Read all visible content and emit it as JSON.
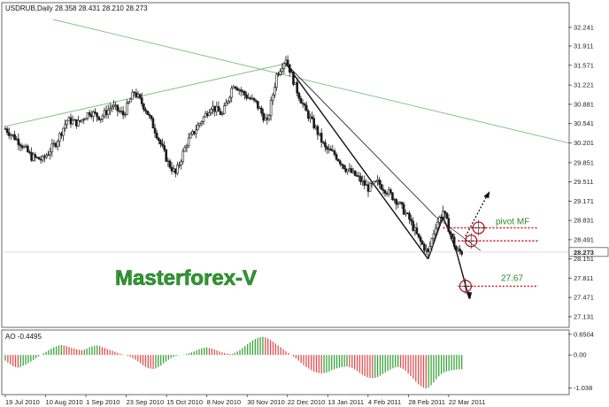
{
  "chart_data": {
    "type": "candlestick",
    "main": {
      "header": "USDRUB,Daily  28.358 28.431 28.210 28.273",
      "ylim": [
        27.13,
        32.38
      ],
      "y_ticks": [
        "32.241",
        "31.911",
        "31.571",
        "31.221",
        "30.881",
        "30.541",
        "30.201",
        "29.851",
        "29.511",
        "29.171",
        "28.831",
        "28.491",
        "28.151",
        "27.811",
        "27.471",
        "27.131"
      ],
      "last_price_label": "28.273",
      "last_price": 28.273,
      "price_path": [
        [
          0,
          30.45
        ],
        [
          8,
          30.2
        ],
        [
          14,
          29.95
        ],
        [
          20,
          29.9
        ],
        [
          27,
          30.2
        ],
        [
          33,
          30.6
        ],
        [
          39,
          30.55
        ],
        [
          45,
          30.75
        ],
        [
          51,
          30.65
        ],
        [
          57,
          30.85
        ],
        [
          63,
          30.7
        ],
        [
          69,
          31.1
        ],
        [
          75,
          30.8
        ],
        [
          81,
          30.35
        ],
        [
          87,
          29.85
        ],
        [
          91,
          29.65
        ],
        [
          97,
          30.2
        ],
        [
          103,
          30.5
        ],
        [
          110,
          30.85
        ],
        [
          116,
          30.7
        ],
        [
          122,
          31.25
        ],
        [
          128,
          31.05
        ],
        [
          134,
          30.9
        ],
        [
          140,
          30.55
        ],
        [
          145,
          31.4
        ],
        [
          150,
          31.7
        ],
        [
          155,
          31.2
        ],
        [
          160,
          30.8
        ],
        [
          166,
          30.45
        ],
        [
          171,
          30.1
        ],
        [
          176,
          30.0
        ],
        [
          182,
          29.75
        ],
        [
          188,
          29.6
        ],
        [
          194,
          29.4
        ],
        [
          199,
          29.5
        ],
        [
          204,
          29.35
        ],
        [
          210,
          29.15
        ],
        [
          216,
          28.85
        ],
        [
          221,
          28.5
        ],
        [
          226,
          28.25
        ],
        [
          230,
          28.75
        ],
        [
          234,
          29.0
        ],
        [
          238,
          28.6
        ],
        [
          241,
          28.3
        ],
        [
          244,
          28.27
        ]
      ]
    },
    "x_ticks": [
      "19 Jul 2010",
      "10 Aug 2010",
      "1 Sep 2010",
      "23 Sep 2010",
      "15 Oct 2010",
      "8 Nov 2010",
      "30 Nov 2010",
      "22 Dec 2010",
      "13 Jan 2011",
      "4 Feb 2011",
      "28 Feb 2011",
      "22 Mar 2011"
    ],
    "annotations": [
      {
        "label": "pivot MF",
        "value": 28.7
      },
      {
        "label": "27.67",
        "value": 27.67
      }
    ],
    "watermark": "Masterforex-V",
    "oscillator": {
      "header": "AO -0.4495",
      "ylim": [
        -1.19,
        0.7
      ],
      "y_ticks": [
        "0.6504",
        "0.00",
        "-1.038"
      ],
      "values": [
        -0.18,
        -0.24,
        -0.3,
        -0.35,
        -0.38,
        -0.4,
        -0.38,
        -0.34,
        -0.3,
        -0.26,
        -0.21,
        -0.16,
        -0.1,
        -0.05,
        0.0,
        0.05,
        0.1,
        0.15,
        0.2,
        0.24,
        0.27,
        0.3,
        0.31,
        0.3,
        0.28,
        0.25,
        0.22,
        0.2,
        0.18,
        0.16,
        0.15,
        0.17,
        0.2,
        0.24,
        0.27,
        0.29,
        0.3,
        0.28,
        0.25,
        0.22,
        0.19,
        0.16,
        0.13,
        0.1,
        0.07,
        0.04,
        0.02,
        0.0,
        -0.03,
        -0.06,
        -0.1,
        -0.15,
        -0.2,
        -0.26,
        -0.32,
        -0.37,
        -0.41,
        -0.43,
        -0.44,
        -0.42,
        -0.38,
        -0.33,
        -0.27,
        -0.21,
        -0.15,
        -0.1,
        -0.06,
        -0.03,
        -0.01,
        0.0,
        0.01,
        0.03,
        0.05,
        0.08,
        0.11,
        0.15,
        0.18,
        0.21,
        0.23,
        0.24,
        0.22,
        0.2,
        0.17,
        0.14,
        0.11,
        0.08,
        0.06,
        0.04,
        0.03,
        0.04,
        0.07,
        0.11,
        0.16,
        0.22,
        0.28,
        0.34,
        0.4,
        0.46,
        0.5,
        0.54,
        0.56,
        0.57,
        0.55,
        0.52,
        0.47,
        0.42,
        0.36,
        0.3,
        0.24,
        0.18,
        0.12,
        0.06,
        0.01,
        -0.05,
        -0.11,
        -0.18,
        -0.25,
        -0.32,
        -0.38,
        -0.43,
        -0.48,
        -0.52,
        -0.55,
        -0.57,
        -0.58,
        -0.57,
        -0.55,
        -0.52,
        -0.48,
        -0.45,
        -0.42,
        -0.4,
        -0.38,
        -0.37,
        -0.36,
        -0.38,
        -0.41,
        -0.45,
        -0.5,
        -0.56,
        -0.62,
        -0.66,
        -0.7,
        -0.72,
        -0.73,
        -0.72,
        -0.69,
        -0.65,
        -0.6,
        -0.55,
        -0.5,
        -0.46,
        -0.42,
        -0.39,
        -0.38,
        -0.4,
        -0.44,
        -0.5,
        -0.58,
        -0.66,
        -0.75,
        -0.84,
        -0.92,
        -0.98,
        -1.03,
        -1.05,
        -1.02,
        -0.95,
        -0.86,
        -0.76,
        -0.67,
        -0.6,
        -0.55,
        -0.52,
        -0.5,
        -0.48,
        -0.47,
        -0.46,
        -0.45,
        -0.45
      ]
    }
  },
  "colors": {
    "bull": "#1a1a1a",
    "bear": "#1a1a1a",
    "trendline": "#7fbf7f",
    "pivot": "#c0161d",
    "ao_up": "#3aa43a",
    "ao_down": "#e05050",
    "brand": "#2e9b2e"
  }
}
